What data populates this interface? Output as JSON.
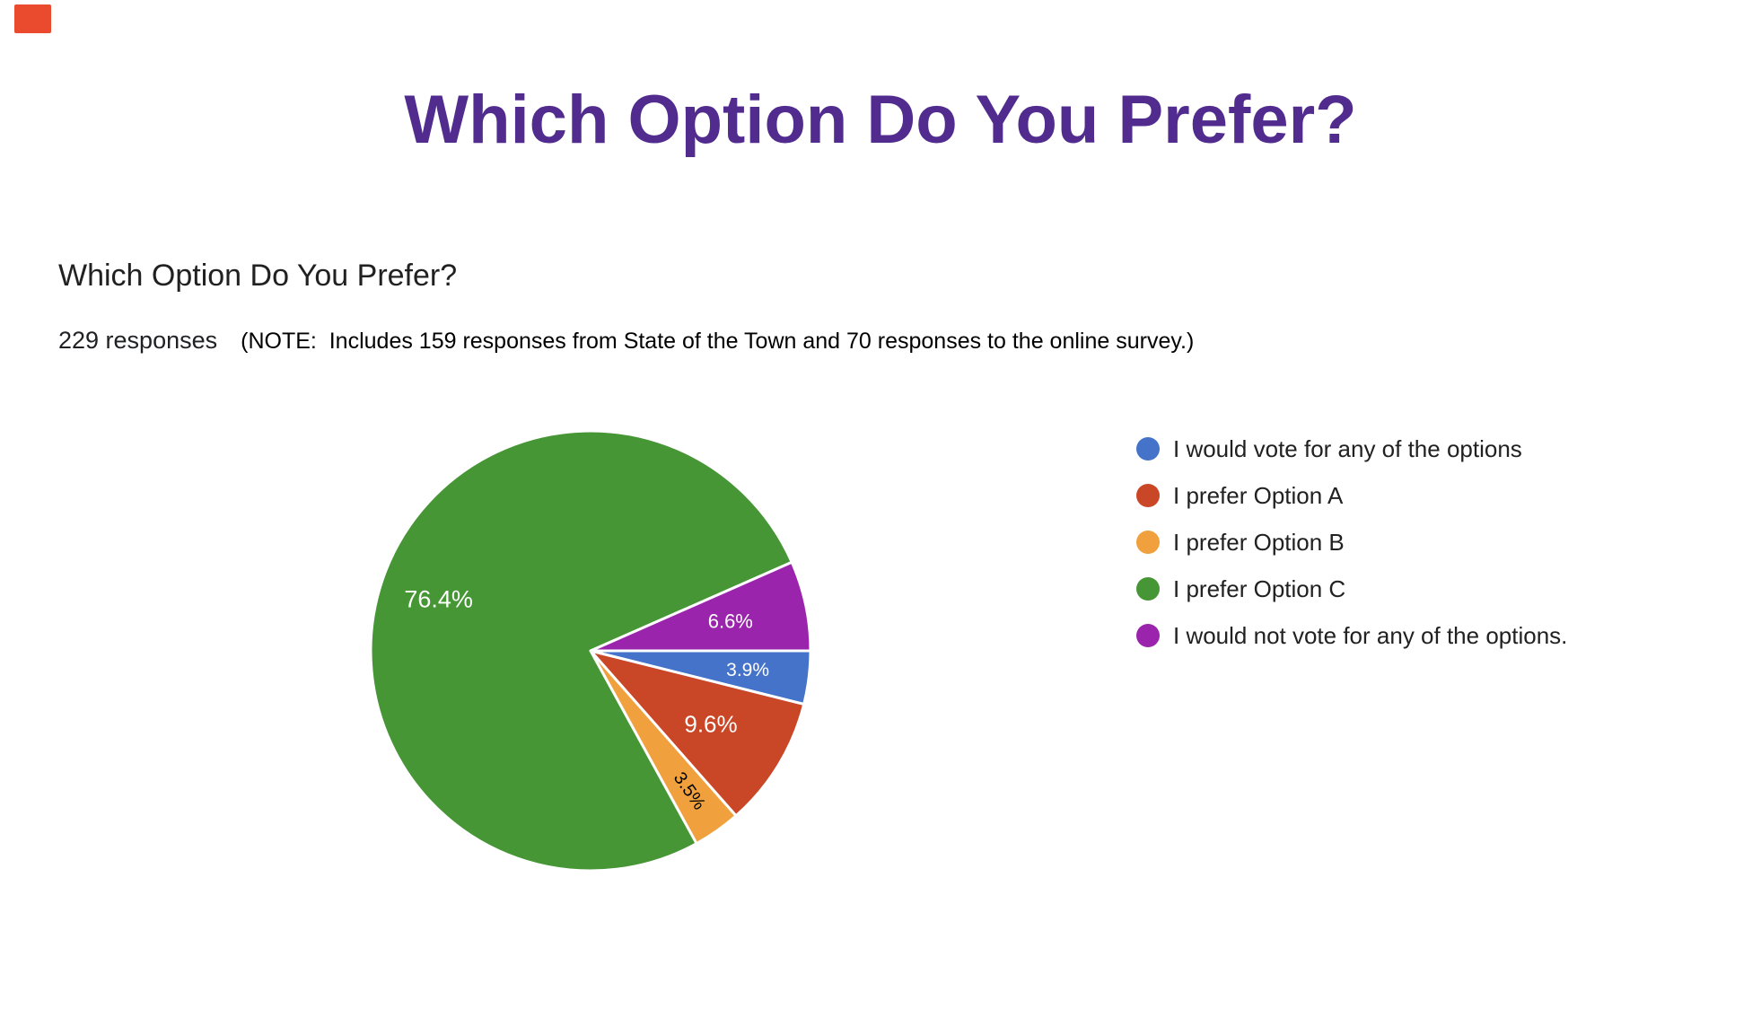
{
  "page": {
    "background": "#ffffff",
    "corner_marker_color": "#ea4b2e"
  },
  "header": {
    "title": "Which Option Do You Prefer?",
    "color": "#512c8e"
  },
  "question": {
    "title": "Which Option Do You Prefer?",
    "responses_count": "229 responses",
    "note": "(NOTE:  Includes 159 responses from State of the Town and 70 responses to the online survey.)"
  },
  "chart_data": {
    "type": "pie",
    "title": "Which Option Do You Prefer?",
    "total_responses": 229,
    "legend_position": "right",
    "start_angle_deg": 0,
    "slice_border_color": "#ffffff",
    "slices": [
      {
        "label": "I would vote for any of the options",
        "pct": 3.9,
        "display": "3.9%",
        "color": "#4573c9",
        "label_color": "#ffffff",
        "label_r": 0.72,
        "label_size": 21,
        "label_rotate": 0
      },
      {
        "label": "I prefer Option A",
        "pct": 9.6,
        "display": "9.6%",
        "color": "#c94727",
        "label_color": "#ffffff",
        "label_r": 0.64,
        "label_size": 26,
        "label_rotate": 0
      },
      {
        "label": "I prefer Option B",
        "pct": 3.5,
        "display": "3.5%",
        "color": "#f0a03c",
        "label_color": "#000000",
        "label_r": 0.78,
        "label_size": 20,
        "label_rotate": 55
      },
      {
        "label": "I prefer Option C",
        "pct": 76.4,
        "display": "76.4%",
        "color": "#469635",
        "label_color": "#ffffff",
        "label_r": 0.73,
        "label_size": 27,
        "label_rotate": 0
      },
      {
        "label": "I would not vote for any of the options.",
        "pct": 6.6,
        "display": "6.6%",
        "color": "#9a25ac",
        "label_color": "#ffffff",
        "label_r": 0.65,
        "label_size": 22,
        "label_rotate": 0
      }
    ]
  }
}
